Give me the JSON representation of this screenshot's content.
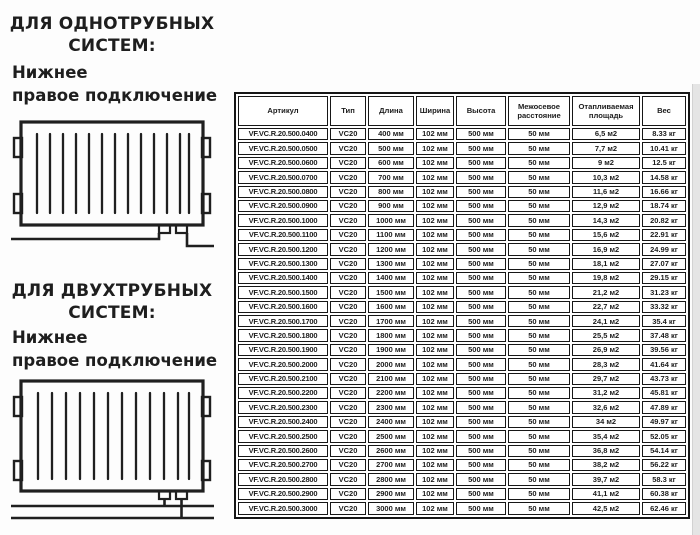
{
  "left_panel": {
    "section1": {
      "title": "ДЛЯ ОДНОТРУБНЫХ\nСИСТЕМ:",
      "subtitle": "Нижнее\nправое подключение",
      "diagram": "radiator-bottom-right-connection-single-pipe"
    },
    "section2": {
      "title": "ДЛЯ ДВУХТРУБНЫХ\nСИСТЕМ:",
      "subtitle": "Нижнее\nправое подключение",
      "diagram": "radiator-bottom-right-connection-two-pipe"
    }
  },
  "table": {
    "headers": [
      "Артикул",
      "Тип",
      "Длина",
      "Ширина",
      "Высота",
      "Межосевое расстояние",
      "Отапливаемая площадь",
      "Вес"
    ],
    "rows": [
      {
        "article": "VF.VC.R.20.500.0400",
        "type": "VC20",
        "length": "400 мм",
        "width": "102 мм",
        "height": "500 мм",
        "axial": "50 мм",
        "area": "6,5 м2",
        "weight": "8.33 кг"
      },
      {
        "article": "VF.VC.R.20.500.0500",
        "type": "VC20",
        "length": "500 мм",
        "width": "102 мм",
        "height": "500 мм",
        "axial": "50 мм",
        "area": "7,7 м2",
        "weight": "10.41 кг"
      },
      {
        "article": "VF.VC.R.20.500.0600",
        "type": "VC20",
        "length": "600 мм",
        "width": "102 мм",
        "height": "500 мм",
        "axial": "50 мм",
        "area": "9 м2",
        "weight": "12.5 кг"
      },
      {
        "article": "VF.VC.R.20.500.0700",
        "type": "VC20",
        "length": "700 мм",
        "width": "102 мм",
        "height": "500 мм",
        "axial": "50 мм",
        "area": "10,3 м2",
        "weight": "14.58 кг"
      },
      {
        "article": "VF.VC.R.20.500.0800",
        "type": "VC20",
        "length": "800 мм",
        "width": "102 мм",
        "height": "500 мм",
        "axial": "50 мм",
        "area": "11,6 м2",
        "weight": "16.66 кг"
      },
      {
        "article": "VF.VC.R.20.500.0900",
        "type": "VC20",
        "length": "900 мм",
        "width": "102 мм",
        "height": "500 мм",
        "axial": "50 мм",
        "area": "12,9 м2",
        "weight": "18.74 кг"
      },
      {
        "article": "VF.VC.R.20.500.1000",
        "type": "VC20",
        "length": "1000 мм",
        "width": "102 мм",
        "height": "500 мм",
        "axial": "50 мм",
        "area": "14,3 м2",
        "weight": "20.82 кг"
      },
      {
        "article": "VF.VC.R.20.500.1100",
        "type": "VC20",
        "length": "1100 мм",
        "width": "102 мм",
        "height": "500 мм",
        "axial": "50 мм",
        "area": "15,6 м2",
        "weight": "22.91 кг"
      },
      {
        "article": "VF.VC.R.20.500.1200",
        "type": "VC20",
        "length": "1200 мм",
        "width": "102 мм",
        "height": "500 мм",
        "axial": "50 мм",
        "area": "16,9 м2",
        "weight": "24.99 кг"
      },
      {
        "article": "VF.VC.R.20.500.1300",
        "type": "VC20",
        "length": "1300 мм",
        "width": "102 мм",
        "height": "500 мм",
        "axial": "50 мм",
        "area": "18,1 м2",
        "weight": "27.07 кг"
      },
      {
        "article": "VF.VC.R.20.500.1400",
        "type": "VC20",
        "length": "1400 мм",
        "width": "102 мм",
        "height": "500 мм",
        "axial": "50 мм",
        "area": "19,8 м2",
        "weight": "29.15 кг"
      },
      {
        "article": "VF.VC.R.20.500.1500",
        "type": "VC20",
        "length": "1500 мм",
        "width": "102 мм",
        "height": "500 мм",
        "axial": "50 мм",
        "area": "21,2 м2",
        "weight": "31.23 кг"
      },
      {
        "article": "VF.VC.R.20.500.1600",
        "type": "VC20",
        "length": "1600 мм",
        "width": "102 мм",
        "height": "500 мм",
        "axial": "50 мм",
        "area": "22,7 м2",
        "weight": "33.32 кг"
      },
      {
        "article": "VF.VC.R.20.500.1700",
        "type": "VC20",
        "length": "1700 мм",
        "width": "102 мм",
        "height": "500 мм",
        "axial": "50 мм",
        "area": "24,1 м2",
        "weight": "35.4 кг"
      },
      {
        "article": "VF.VC.R.20.500.1800",
        "type": "VC20",
        "length": "1800 мм",
        "width": "102 мм",
        "height": "500 мм",
        "axial": "50 мм",
        "area": "25,5 м2",
        "weight": "37.48 кг"
      },
      {
        "article": "VF.VC.R.20.500.1900",
        "type": "VC20",
        "length": "1900 мм",
        "width": "102 мм",
        "height": "500 мм",
        "axial": "50 мм",
        "area": "26,9 м2",
        "weight": "39.56 кг"
      },
      {
        "article": "VF.VC.R.20.500.2000",
        "type": "VC20",
        "length": "2000 мм",
        "width": "102 мм",
        "height": "500 мм",
        "axial": "50 мм",
        "area": "28,3 м2",
        "weight": "41.64 кг"
      },
      {
        "article": "VF.VC.R.20.500.2100",
        "type": "VC20",
        "length": "2100 мм",
        "width": "102 мм",
        "height": "500 мм",
        "axial": "50 мм",
        "area": "29,7 м2",
        "weight": "43.73 кг"
      },
      {
        "article": "VF.VC.R.20.500.2200",
        "type": "VC20",
        "length": "2200 мм",
        "width": "102 мм",
        "height": "500 мм",
        "axial": "50 мм",
        "area": "31,2 м2",
        "weight": "45.81 кг"
      },
      {
        "article": "VF.VC.R.20.500.2300",
        "type": "VC20",
        "length": "2300 мм",
        "width": "102 мм",
        "height": "500 мм",
        "axial": "50 мм",
        "area": "32,6 м2",
        "weight": "47.89 кг"
      },
      {
        "article": "VF.VC.R.20.500.2400",
        "type": "VC20",
        "length": "2400 мм",
        "width": "102 мм",
        "height": "500 мм",
        "axial": "50 мм",
        "area": "34 м2",
        "weight": "49.97 кг"
      },
      {
        "article": "VF.VC.R.20.500.2500",
        "type": "VC20",
        "length": "2500 мм",
        "width": "102 мм",
        "height": "500 мм",
        "axial": "50 мм",
        "area": "35,4 м2",
        "weight": "52.05 кг"
      },
      {
        "article": "VF.VC.R.20.500.2600",
        "type": "VC20",
        "length": "2600 мм",
        "width": "102 мм",
        "height": "500 мм",
        "axial": "50 мм",
        "area": "36,8 м2",
        "weight": "54.14 кг"
      },
      {
        "article": "VF.VC.R.20.500.2700",
        "type": "VC20",
        "length": "2700 мм",
        "width": "102 мм",
        "height": "500 мм",
        "axial": "50 мм",
        "area": "38,2 м2",
        "weight": "56.22 кг"
      },
      {
        "article": "VF.VC.R.20.500.2800",
        "type": "VC20",
        "length": "2800 мм",
        "width": "102 мм",
        "height": "500 мм",
        "axial": "50 мм",
        "area": "39,7 м2",
        "weight": "58.3 кг"
      },
      {
        "article": "VF.VC.R.20.500.2900",
        "type": "VC20",
        "length": "2900 мм",
        "width": "102 мм",
        "height": "500 мм",
        "axial": "50 мм",
        "area": "41,1 м2",
        "weight": "60.38 кг"
      },
      {
        "article": "VF.VC.R.20.500.3000",
        "type": "VC20",
        "length": "3000 мм",
        "width": "102 мм",
        "height": "500 мм",
        "axial": "50 мм",
        "area": "42,5 м2",
        "weight": "62.46 кг"
      }
    ]
  },
  "colors": {
    "line": "#1f1f1f",
    "table_border": "#161616",
    "background": "#fdfdfd",
    "right_strip": "#e5e5e5"
  }
}
